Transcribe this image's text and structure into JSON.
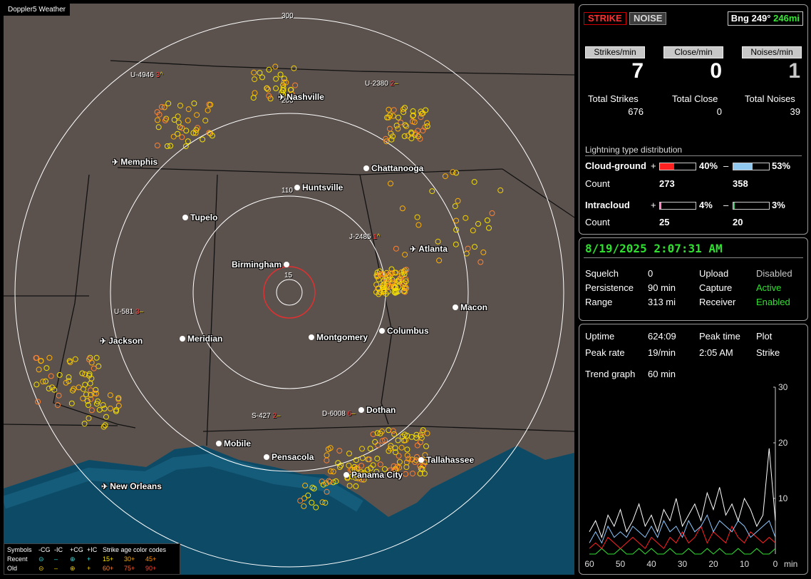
{
  "app_title": "Doppler5 Weather",
  "map": {
    "range_labels": [
      "300",
      "200",
      "110",
      "15"
    ],
    "cities": [
      {
        "name": "Nashville",
        "type": "airport"
      },
      {
        "name": "Memphis",
        "type": "airport"
      },
      {
        "name": "Chattanooga",
        "type": "city"
      },
      {
        "name": "Huntsville",
        "type": "city"
      },
      {
        "name": "Tupelo",
        "type": "city"
      },
      {
        "name": "Atlanta",
        "type": "airport"
      },
      {
        "name": "Birmingham",
        "type": "city"
      },
      {
        "name": "Macon",
        "type": "city"
      },
      {
        "name": "Jackson",
        "type": "airport"
      },
      {
        "name": "Meridian",
        "type": "city"
      },
      {
        "name": "Montgomery",
        "type": "city"
      },
      {
        "name": "Columbus",
        "type": "city"
      },
      {
        "name": "Dothan",
        "type": "city"
      },
      {
        "name": "Mobile",
        "type": "city"
      },
      {
        "name": "Pensacola",
        "type": "city"
      },
      {
        "name": "Tallahassee",
        "type": "city"
      },
      {
        "name": "Panama City",
        "type": "city"
      },
      {
        "name": "New Orleans",
        "type": "airport"
      }
    ],
    "storms": [
      {
        "a": "U-4946",
        "b": "3",
        "c": "^"
      },
      {
        "a": "U-2380",
        "b": "2",
        "c": "–"
      },
      {
        "a": "J-2485",
        "b": "1",
        "c": "^"
      },
      {
        "a": "U-581",
        "b": "3",
        "c": "–"
      },
      {
        "a": "S-427",
        "b": "2",
        "c": "–"
      },
      {
        "a": "D-6008",
        "b": "6",
        "c": "–"
      }
    ],
    "legend": {
      "header": [
        "Symbols",
        "-CG",
        "-IC",
        "+CG",
        "+IC",
        "Strike age color codes"
      ],
      "recent": [
        "Recent",
        "⊝",
        "–",
        "⊕",
        "+",
        "15+",
        "30+",
        "45+"
      ],
      "old": [
        "Old",
        "⊝",
        "–",
        "⊕",
        "+",
        "60+",
        "75+",
        "90+"
      ]
    },
    "colors": {
      "land": "#5b524e",
      "water": "#0c4a66",
      "range_ring": "#ffffff",
      "center_ring": "#e03030"
    }
  },
  "panel1": {
    "strike_btn": "STRIKE",
    "noise_btn": "NOISE",
    "bearing": "Bng 249°",
    "distance": "246mi",
    "headers": [
      "Strikes/min",
      "Close/min",
      "Noises/min"
    ],
    "rates": [
      "7",
      "0",
      "1"
    ],
    "totals_labels": [
      "Total Strikes",
      "Total Close",
      "Total Noises"
    ],
    "totals": [
      "676",
      "0",
      "39"
    ],
    "dist_title": "Lightning type distribution",
    "cg_label": "Cloud-ground",
    "ic_label": "Intracloud",
    "count_label": "Count",
    "plus": "+",
    "minus": "–",
    "cg_pos_pct": "40%",
    "cg_neg_pct": "53%",
    "cg_pos_count": "273",
    "cg_neg_count": "358",
    "ic_pos_pct": "4%",
    "ic_neg_pct": "3%",
    "ic_pos_count": "25",
    "ic_neg_count": "20",
    "bar_levels": {
      "cg_pos": 0.4,
      "cg_neg": 0.53,
      "ic_pos": 0.04,
      "ic_neg": 0.03
    },
    "bar_colors": {
      "cg_pos": "#ff2020",
      "cg_neg": "#90c8f0",
      "ic_pos": "#ff80c0",
      "ic_neg": "#30c060"
    }
  },
  "panel2": {
    "datetime": "8/19/2025 2:07:31 AM",
    "rows": [
      {
        "k1": "Squelch",
        "v1": "0",
        "k2": "Upload",
        "v2": "Disabled"
      },
      {
        "k1": "Persistence",
        "v1": "90 min",
        "k2": "Capture",
        "v2": "Active"
      },
      {
        "k1": "Range",
        "v1": "313 mi",
        "k2": "Receiver",
        "v2": "Enabled"
      }
    ]
  },
  "panel3": {
    "uptime_label": "Uptime",
    "uptime": "624:09",
    "peak_time_label": "Peak time",
    "plot_label": "Plot",
    "peak_rate_label": "Peak rate",
    "peak_rate": "19/min",
    "peak_time": "2:05 AM",
    "plot_value": "Strike",
    "trend_label": "Trend graph",
    "trend_value": "60 min",
    "y_ticks": [
      "30",
      "20",
      "10"
    ],
    "x_ticks": [
      "60",
      "50",
      "40",
      "30",
      "20",
      "10",
      "0"
    ],
    "x_unit": "min"
  },
  "chart_data": {
    "type": "line",
    "x": [
      60,
      58,
      56,
      54,
      52,
      50,
      48,
      46,
      44,
      42,
      40,
      38,
      36,
      34,
      32,
      30,
      28,
      26,
      24,
      22,
      20,
      18,
      16,
      14,
      12,
      10,
      8,
      6,
      4,
      2,
      0
    ],
    "ylim": [
      0,
      30
    ],
    "xlim": [
      60,
      0
    ],
    "series": [
      {
        "color": "#ffffff",
        "values": [
          4,
          6,
          3,
          7,
          5,
          8,
          4,
          6,
          9,
          5,
          7,
          4,
          8,
          6,
          10,
          5,
          7,
          9,
          6,
          11,
          8,
          12,
          7,
          9,
          6,
          10,
          8,
          5,
          7,
          19,
          6
        ]
      },
      {
        "color": "#8ec8ff",
        "values": [
          2,
          4,
          2,
          5,
          3,
          4,
          3,
          5,
          4,
          3,
          5,
          3,
          6,
          4,
          5,
          3,
          6,
          4,
          5,
          7,
          4,
          6,
          5,
          4,
          6,
          5,
          3,
          4,
          5,
          6,
          3
        ]
      },
      {
        "color": "#ff2020",
        "values": [
          1,
          2,
          1,
          3,
          2,
          1,
          2,
          3,
          2,
          1,
          3,
          2,
          1,
          3,
          2,
          4,
          2,
          3,
          5,
          2,
          4,
          3,
          2,
          5,
          3,
          2,
          4,
          3,
          2,
          3,
          2
        ]
      },
      {
        "color": "#30e030",
        "values": [
          0,
          0,
          1,
          0,
          0,
          1,
          0,
          0,
          1,
          0,
          1,
          0,
          0,
          1,
          0,
          0,
          1,
          0,
          0,
          1,
          0,
          1,
          0,
          0,
          1,
          0,
          0,
          1,
          0,
          0,
          1
        ]
      }
    ]
  }
}
